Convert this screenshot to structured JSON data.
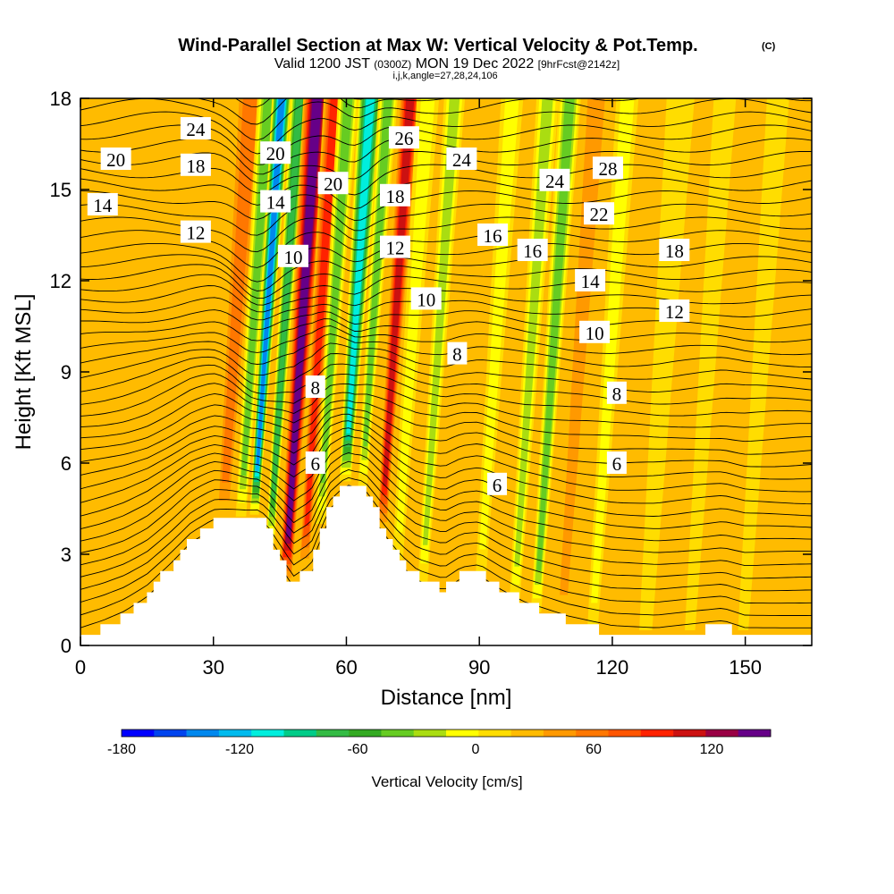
{
  "chart_data": {
    "type": "heatmap",
    "title": "Wind-Parallel Section at Max W: Vertical Velocity & Pot.Temp.",
    "title_mark": "(C)",
    "subtitle_parts": [
      "Valid 1200 JST ",
      "(0300Z)",
      " MON 19 Dec 2022 ",
      "[9hrFcst@2142z]"
    ],
    "subtitle2": "i,j,k,angle=27,28,24,106",
    "xlabel": "Distance [nm]",
    "ylabel": "Height [Kft MSL]",
    "xlim": [
      0,
      165
    ],
    "ylim": [
      0,
      18
    ],
    "xticks": [
      0,
      30,
      60,
      90,
      120,
      150
    ],
    "yticks": [
      0,
      3,
      6,
      9,
      12,
      15,
      18
    ],
    "colorbar": {
      "label": "Vertical Velocity [cm/s]",
      "range": [
        -180,
        150
      ],
      "step": 15,
      "ticks": [
        -180,
        -120,
        -60,
        0,
        60,
        120
      ],
      "colors": [
        "#0000ff",
        "#0044ee",
        "#0088ee",
        "#00bbee",
        "#00eedd",
        "#00cc88",
        "#33bb44",
        "#33aa22",
        "#66cc22",
        "#aadd11",
        "#ffff00",
        "#ffdd00",
        "#ffbb00",
        "#ff9900",
        "#ff7700",
        "#ff5500",
        "#ff2200",
        "#cc1111",
        "#990044",
        "#660088"
      ]
    },
    "terrain": [
      [
        0,
        0.3
      ],
      [
        5,
        0.6
      ],
      [
        10,
        1.0
      ],
      [
        15,
        1.6
      ],
      [
        20,
        2.5
      ],
      [
        25,
        3.5
      ],
      [
        30,
        4.1
      ],
      [
        35,
        4.2
      ],
      [
        40,
        4.3
      ],
      [
        42,
        4.0
      ],
      [
        45,
        3.0
      ],
      [
        48,
        2.0
      ],
      [
        52,
        2.5
      ],
      [
        56,
        4.5
      ],
      [
        60,
        5.4
      ],
      [
        64,
        5.2
      ],
      [
        68,
        4.0
      ],
      [
        72,
        3.0
      ],
      [
        76,
        2.3
      ],
      [
        82,
        1.9
      ],
      [
        86,
        2.4
      ],
      [
        90,
        2.5
      ],
      [
        95,
        1.9
      ],
      [
        100,
        1.4
      ],
      [
        105,
        1.1
      ],
      [
        110,
        0.8
      ],
      [
        115,
        0.6
      ],
      [
        120,
        0.4
      ],
      [
        130,
        0.3
      ],
      [
        140,
        0.5
      ],
      [
        145,
        0.6
      ],
      [
        150,
        0.3
      ],
      [
        165,
        0.3
      ]
    ],
    "isentropes": {
      "units": "C",
      "labels": [
        {
          "x": 26,
          "y": 17.0,
          "text": "24"
        },
        {
          "x": 8,
          "y": 16.0,
          "text": "20"
        },
        {
          "x": 26,
          "y": 15.8,
          "text": "18"
        },
        {
          "x": 44,
          "y": 16.2,
          "text": "20"
        },
        {
          "x": 57,
          "y": 15.2,
          "text": "20"
        },
        {
          "x": 73,
          "y": 16.7,
          "text": "26"
        },
        {
          "x": 86,
          "y": 16.0,
          "text": "24"
        },
        {
          "x": 119,
          "y": 15.7,
          "text": "28"
        },
        {
          "x": 5,
          "y": 14.5,
          "text": "14"
        },
        {
          "x": 44,
          "y": 14.6,
          "text": "14"
        },
        {
          "x": 71,
          "y": 14.8,
          "text": "18"
        },
        {
          "x": 107,
          "y": 15.3,
          "text": "24"
        },
        {
          "x": 26,
          "y": 13.6,
          "text": "12"
        },
        {
          "x": 117,
          "y": 14.2,
          "text": "22"
        },
        {
          "x": 93,
          "y": 13.5,
          "text": "16"
        },
        {
          "x": 48,
          "y": 12.8,
          "text": "10"
        },
        {
          "x": 71,
          "y": 13.1,
          "text": "12"
        },
        {
          "x": 102,
          "y": 13.0,
          "text": "16"
        },
        {
          "x": 134,
          "y": 13.0,
          "text": "18"
        },
        {
          "x": 115,
          "y": 12.0,
          "text": "14"
        },
        {
          "x": 78,
          "y": 11.4,
          "text": "10"
        },
        {
          "x": 134,
          "y": 11.0,
          "text": "12"
        },
        {
          "x": 116,
          "y": 10.3,
          "text": "10"
        },
        {
          "x": 85,
          "y": 9.6,
          "text": "8"
        },
        {
          "x": 53,
          "y": 8.5,
          "text": "8"
        },
        {
          "x": 121,
          "y": 8.3,
          "text": "8"
        },
        {
          "x": 121,
          "y": 6.0,
          "text": "6"
        },
        {
          "x": 53,
          "y": 6.0,
          "text": "6"
        },
        {
          "x": 94,
          "y": 5.3,
          "text": "6"
        }
      ]
    },
    "plumes": [
      {
        "x": 33,
        "v": 45,
        "w": 2.2
      },
      {
        "x": 37,
        "v": -60,
        "w": 1.6
      },
      {
        "x": 40,
        "v": -160,
        "w": 1.4
      },
      {
        "x": 44,
        "v": -90,
        "w": 1.3
      },
      {
        "x": 48,
        "v": 125,
        "w": 2.0
      },
      {
        "x": 52,
        "v": 80,
        "w": 1.6
      },
      {
        "x": 55,
        "v": -60,
        "w": 1.5
      },
      {
        "x": 60,
        "v": -130,
        "w": 1.8
      },
      {
        "x": 64,
        "v": -70,
        "w": 1.4
      },
      {
        "x": 69,
        "v": 90,
        "w": 1.6
      },
      {
        "x": 73,
        "v": -30,
        "w": 1.6
      },
      {
        "x": 79,
        "v": -55,
        "w": 1.5
      },
      {
        "x": 84,
        "v": 25,
        "w": 1.6
      },
      {
        "x": 92,
        "v": -30,
        "w": 1.6
      },
      {
        "x": 100,
        "v": -50,
        "w": 1.6
      },
      {
        "x": 105,
        "v": -70,
        "w": 1.6
      },
      {
        "x": 111,
        "v": 30,
        "w": 2.0
      },
      {
        "x": 118,
        "v": -35,
        "w": 1.6
      },
      {
        "x": 130,
        "v": -20,
        "w": 2.0
      },
      {
        "x": 140,
        "v": -25,
        "w": 1.6
      },
      {
        "x": 152,
        "v": -20,
        "w": 1.6
      }
    ]
  }
}
